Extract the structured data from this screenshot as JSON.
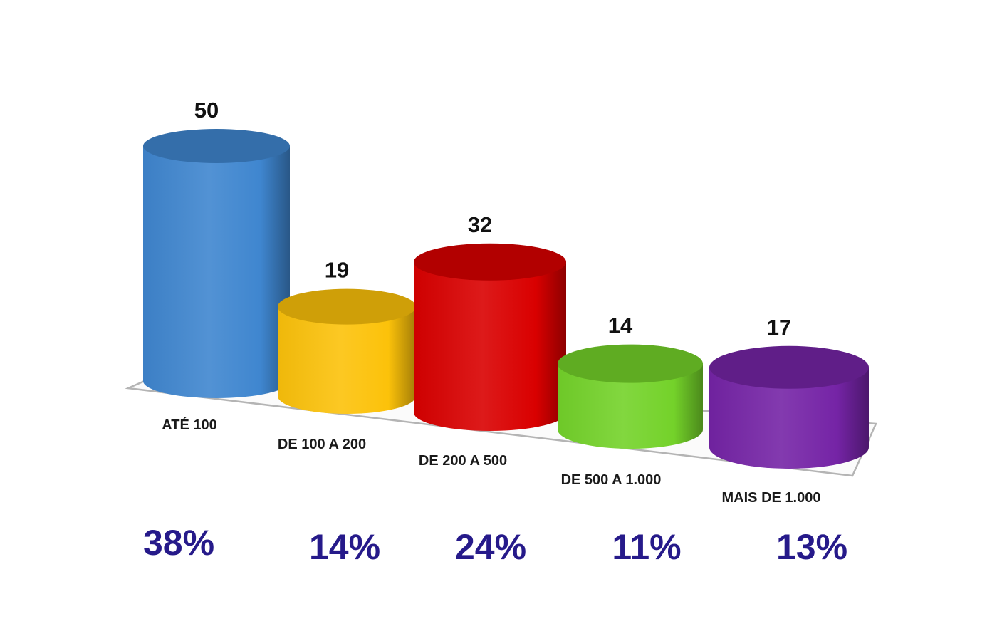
{
  "chart_data": {
    "type": "bar",
    "style": "3d-cylinder",
    "categories": [
      "ATÉ 100",
      "DE 100 A 200",
      "DE 200 A 500",
      "DE 500 A 1.000",
      "MAIS DE 1.000"
    ],
    "values": [
      50,
      19,
      32,
      14,
      17
    ],
    "percentages": [
      "38%",
      "14%",
      "24%",
      "11%",
      "13%"
    ],
    "colors": [
      "#3f86cf",
      "#fcc20a",
      "#d90000",
      "#74d22a",
      "#7524a6"
    ],
    "title": "",
    "xlabel": "",
    "ylabel": "",
    "grid": false,
    "legend": "none"
  }
}
